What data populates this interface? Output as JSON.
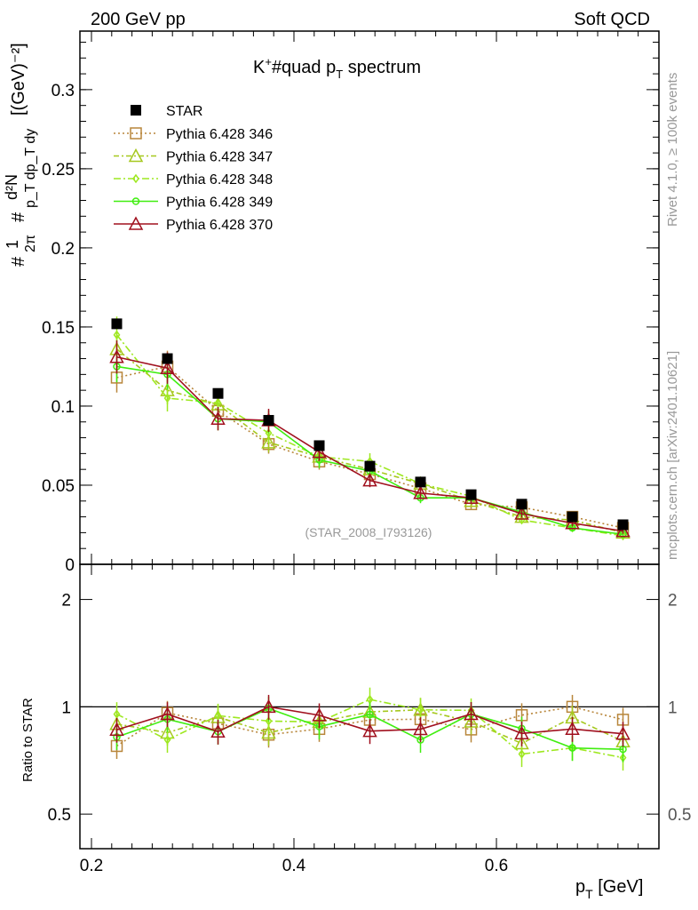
{
  "header": {
    "left": "200 GeV pp",
    "right": "Soft QCD"
  },
  "side_labels": {
    "rivet": "Rivet 4.1.0, ≥ 100k events",
    "mcplots": "mcplots.cern.ch [arXiv:2401.10621]"
  },
  "chart_data": {
    "type": "line",
    "title": "K⁺#quad p_T spectrum",
    "title_parts": {
      "main": "K",
      "sup": "+",
      "mid": "#quad p",
      "sub": "T",
      "end": " spectrum"
    },
    "watermark": "(STAR_2008_I793126)",
    "xlabel": "p_T [GeV]",
    "xlabel_parts": {
      "p": "p",
      "sub": "T",
      "unit": " [GeV]"
    },
    "ylabel_parts": {
      "hash1": "#",
      "num1": "1",
      "den1": "2π",
      "hash2": "#",
      "num2": "d²N",
      "den2": "p_T dp_T dy",
      "unit": "[(GeV)⁻²]"
    },
    "ratio_ylabel": "Ratio to STAR",
    "xlim": [
      0.1886,
      0.7605
    ],
    "ylim": [
      0,
      0.337
    ],
    "ratio_ylim": [
      0.4,
      2.51
    ],
    "ratio_scale": "log",
    "x_ticks": [
      0.2,
      0.4,
      0.6
    ],
    "x_tick_labels": [
      "0.2",
      "0.4",
      "0.6"
    ],
    "y_ticks": [
      0,
      0.05,
      0.1,
      0.15,
      0.2,
      0.25,
      0.3
    ],
    "y_tick_labels": [
      "0",
      "0.05",
      "0.1",
      "0.15",
      "0.2",
      "0.25",
      "0.3"
    ],
    "ratio_ticks": [
      0.5,
      1,
      2
    ],
    "ratio_tick_labels": [
      "0.5",
      "1",
      "2"
    ],
    "legend_position": "top-left",
    "x": [
      0.225,
      0.275,
      0.325,
      0.375,
      0.425,
      0.475,
      0.525,
      0.575,
      0.625,
      0.675,
      0.725
    ],
    "reference": {
      "name": "STAR",
      "values": [
        0.152,
        0.13,
        0.108,
        0.091,
        0.075,
        0.062,
        0.052,
        0.044,
        0.038,
        0.03,
        0.025
      ],
      "color": "#000000"
    },
    "series": [
      {
        "name": "Pythia 6.428 346",
        "color": "#b8863b",
        "dash": "2,3",
        "marker": "square",
        "rel_err": 0.08,
        "values": [
          0.118,
          0.125,
          0.097,
          0.076,
          0.065,
          0.057,
          0.048,
          0.038,
          0.036,
          0.03,
          0.023
        ]
      },
      {
        "name": "Pythia 6.428 347",
        "color": "#a6c81e",
        "dash": "6,3,2,3",
        "marker": "triangle",
        "rel_err": 0.08,
        "values": [
          0.136,
          0.11,
          0.101,
          0.077,
          0.068,
          0.06,
          0.051,
          0.04,
          0.03,
          0.028,
          0.02
        ]
      },
      {
        "name": "Pythia 6.428 348",
        "color": "#9ee820",
        "dash": "8,3,2,3",
        "marker": "diamond",
        "rel_err": 0.08,
        "values": [
          0.145,
          0.105,
          0.102,
          0.083,
          0.068,
          0.065,
          0.051,
          0.043,
          0.028,
          0.023,
          0.018
        ]
      },
      {
        "name": "Pythia 6.428 349",
        "color": "#40ee10",
        "dash": "",
        "marker": "circle",
        "rel_err": 0.08,
        "values": [
          0.125,
          0.12,
          0.092,
          0.09,
          0.066,
          0.059,
          0.042,
          0.042,
          0.033,
          0.023,
          0.019
        ]
      },
      {
        "name": "Pythia 6.428 370",
        "color": "#a0101e",
        "dash": "",
        "marker": "triangle",
        "rel_err": 0.08,
        "values": [
          0.131,
          0.124,
          0.092,
          0.091,
          0.071,
          0.053,
          0.045,
          0.042,
          0.032,
          0.026,
          0.021
        ]
      }
    ]
  }
}
